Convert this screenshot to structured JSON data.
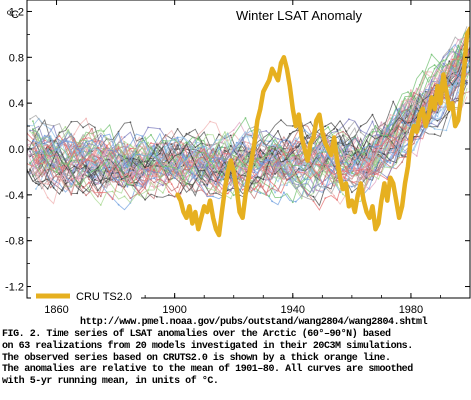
{
  "chart_data": {
    "type": "line",
    "title": "Winter LSAT Anomaly",
    "ylabel": "ºC",
    "xlabel": "",
    "xlim": [
      1850,
      2000
    ],
    "ylim": [
      -1.3,
      1.3
    ],
    "x_ticks": [
      1860,
      1900,
      1940,
      1980
    ],
    "x_tick_labels": [
      "1860",
      "1900",
      "1940",
      "1980"
    ],
    "y_ticks": [
      1.2,
      0.8,
      0.4,
      0.0,
      -0.4,
      -0.8,
      -1.2
    ],
    "y_tick_labels": [
      "1.2",
      "0.8",
      "0.4",
      "0.0",
      "-0.4",
      "-0.8",
      "-1.2"
    ],
    "grid": false,
    "legend_position": "bottom-left",
    "legend": [
      "CRU TS2.0"
    ],
    "observed_series": {
      "name": "CRU TS2.0",
      "color": "#e6b020",
      "x": [
        1901,
        1902,
        1903,
        1904,
        1905,
        1906,
        1907,
        1908,
        1909,
        1910,
        1911,
        1912,
        1913,
        1914,
        1915,
        1916,
        1917,
        1918,
        1919,
        1920,
        1921,
        1922,
        1923,
        1924,
        1925,
        1926,
        1927,
        1928,
        1929,
        1930,
        1931,
        1932,
        1933,
        1934,
        1935,
        1936,
        1937,
        1938,
        1939,
        1940,
        1941,
        1942,
        1943,
        1944,
        1945,
        1946,
        1947,
        1948,
        1949,
        1950,
        1951,
        1952,
        1953,
        1954,
        1955,
        1956,
        1957,
        1958,
        1959,
        1960,
        1961,
        1962,
        1963,
        1964,
        1965,
        1966,
        1967,
        1968,
        1969,
        1970,
        1971,
        1972,
        1973,
        1974,
        1975,
        1976,
        1977,
        1978,
        1979,
        1980,
        1981,
        1982,
        1983,
        1984,
        1985,
        1986,
        1987,
        1988,
        1989,
        1990,
        1991,
        1992,
        1993,
        1994,
        1995,
        1996,
        1997,
        1998,
        1999,
        2000
      ],
      "values": [
        -0.4,
        -0.45,
        -0.55,
        -0.6,
        -0.5,
        -0.65,
        -0.55,
        -0.7,
        -0.6,
        -0.5,
        -0.55,
        -0.45,
        -0.6,
        -0.7,
        -0.75,
        -0.55,
        -0.35,
        -0.2,
        -0.1,
        -0.2,
        -0.35,
        -0.55,
        -0.6,
        -0.4,
        -0.25,
        -0.1,
        0.05,
        0.25,
        0.35,
        0.5,
        0.55,
        0.6,
        0.7,
        0.65,
        0.6,
        0.75,
        0.8,
        0.7,
        0.55,
        0.35,
        0.2,
        0.3,
        0.1,
        0.0,
        -0.1,
        0.05,
        0.1,
        0.25,
        0.3,
        0.15,
        0.05,
        0.0,
        -0.05,
        0.1,
        -0.1,
        -0.25,
        -0.35,
        -0.3,
        -0.5,
        -0.45,
        -0.55,
        -0.4,
        -0.3,
        -0.45,
        -0.55,
        -0.6,
        -0.5,
        -0.7,
        -0.65,
        -0.45,
        -0.3,
        -0.45,
        -0.25,
        -0.3,
        -0.45,
        -0.6,
        -0.5,
        -0.3,
        -0.15,
        0.1,
        0.2,
        0.15,
        0.3,
        0.35,
        0.2,
        0.3,
        0.45,
        0.35,
        0.55,
        0.4,
        0.65,
        0.5,
        0.35,
        0.4,
        0.2,
        0.25,
        0.45,
        0.7,
        1.0,
        1.05
      ]
    },
    "model_realizations": {
      "count": 63,
      "models": 20,
      "shown_unlabeled": true,
      "colors": [
        "#e87070",
        "#70a0e0",
        "#70c070",
        "#a0a0a0",
        "#505050",
        "#e0a0c0",
        "#90c0e8",
        "#a8d890",
        "#c07070",
        "#8080c0",
        "#404040",
        "#f0b0b0"
      ]
    },
    "colors": {
      "observed": "#e6b020",
      "axis": "#000000",
      "background": "#ffffff"
    }
  },
  "source_url": "http://www.pmel.noaa.gov/pubs/outstand/wang2804/wang2804.shtml",
  "caption_lines": [
    "FIG. 2. Time series of LSAT anomalies over the Arctic (60°–90°N) based",
    "on 63 realizations from 20 models investigated in their 20C3M simulations.",
    "The observed series based on CRUTS2.0 is shown by a thick orange line.",
    "The anomalies are relative to the mean of 1901–80. All curves are smoothed",
    "with 5-yr running mean, in units of °C."
  ]
}
